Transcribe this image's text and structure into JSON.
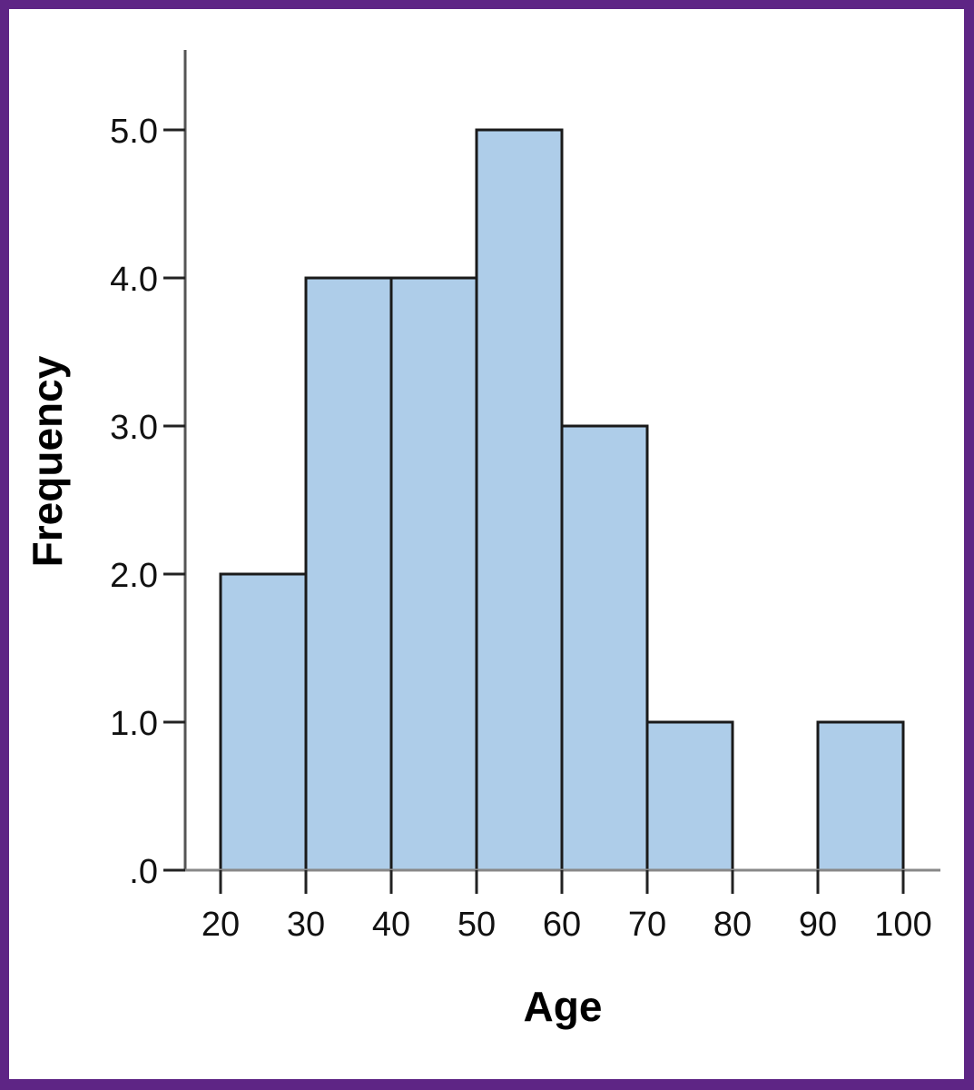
{
  "colors": {
    "border": "#5e2585",
    "bar_fill": "#aecde9",
    "bar_stroke": "#1a1a1a",
    "axis": "#555555"
  },
  "chart_data": {
    "type": "bar",
    "subtype": "histogram",
    "title": "",
    "xlabel": "Age",
    "ylabel": "Frequency",
    "bins": [
      {
        "range": [
          20,
          30
        ],
        "count": 2
      },
      {
        "range": [
          30,
          40
        ],
        "count": 4
      },
      {
        "range": [
          40,
          50
        ],
        "count": 4
      },
      {
        "range": [
          50,
          60
        ],
        "count": 5
      },
      {
        "range": [
          60,
          70
        ],
        "count": 3
      },
      {
        "range": [
          70,
          80
        ],
        "count": 1
      },
      {
        "range": [
          80,
          90
        ],
        "count": 0
      },
      {
        "range": [
          90,
          100
        ],
        "count": 1
      }
    ],
    "categories": [
      "20-30",
      "30-40",
      "40-50",
      "50-60",
      "60-70",
      "70-80",
      "80-90",
      "90-100"
    ],
    "values": [
      2,
      4,
      4,
      5,
      3,
      1,
      0,
      1
    ],
    "x_ticks": [
      "20",
      "30",
      "40",
      "50",
      "60",
      "70",
      "80",
      "90",
      "100"
    ],
    "y_ticks": [
      ".0",
      "1.0",
      "2.0",
      "3.0",
      "4.0",
      "5.0"
    ],
    "xlim": [
      20,
      100
    ],
    "ylim": [
      0,
      5.5
    ],
    "grid": false,
    "legend": null
  }
}
